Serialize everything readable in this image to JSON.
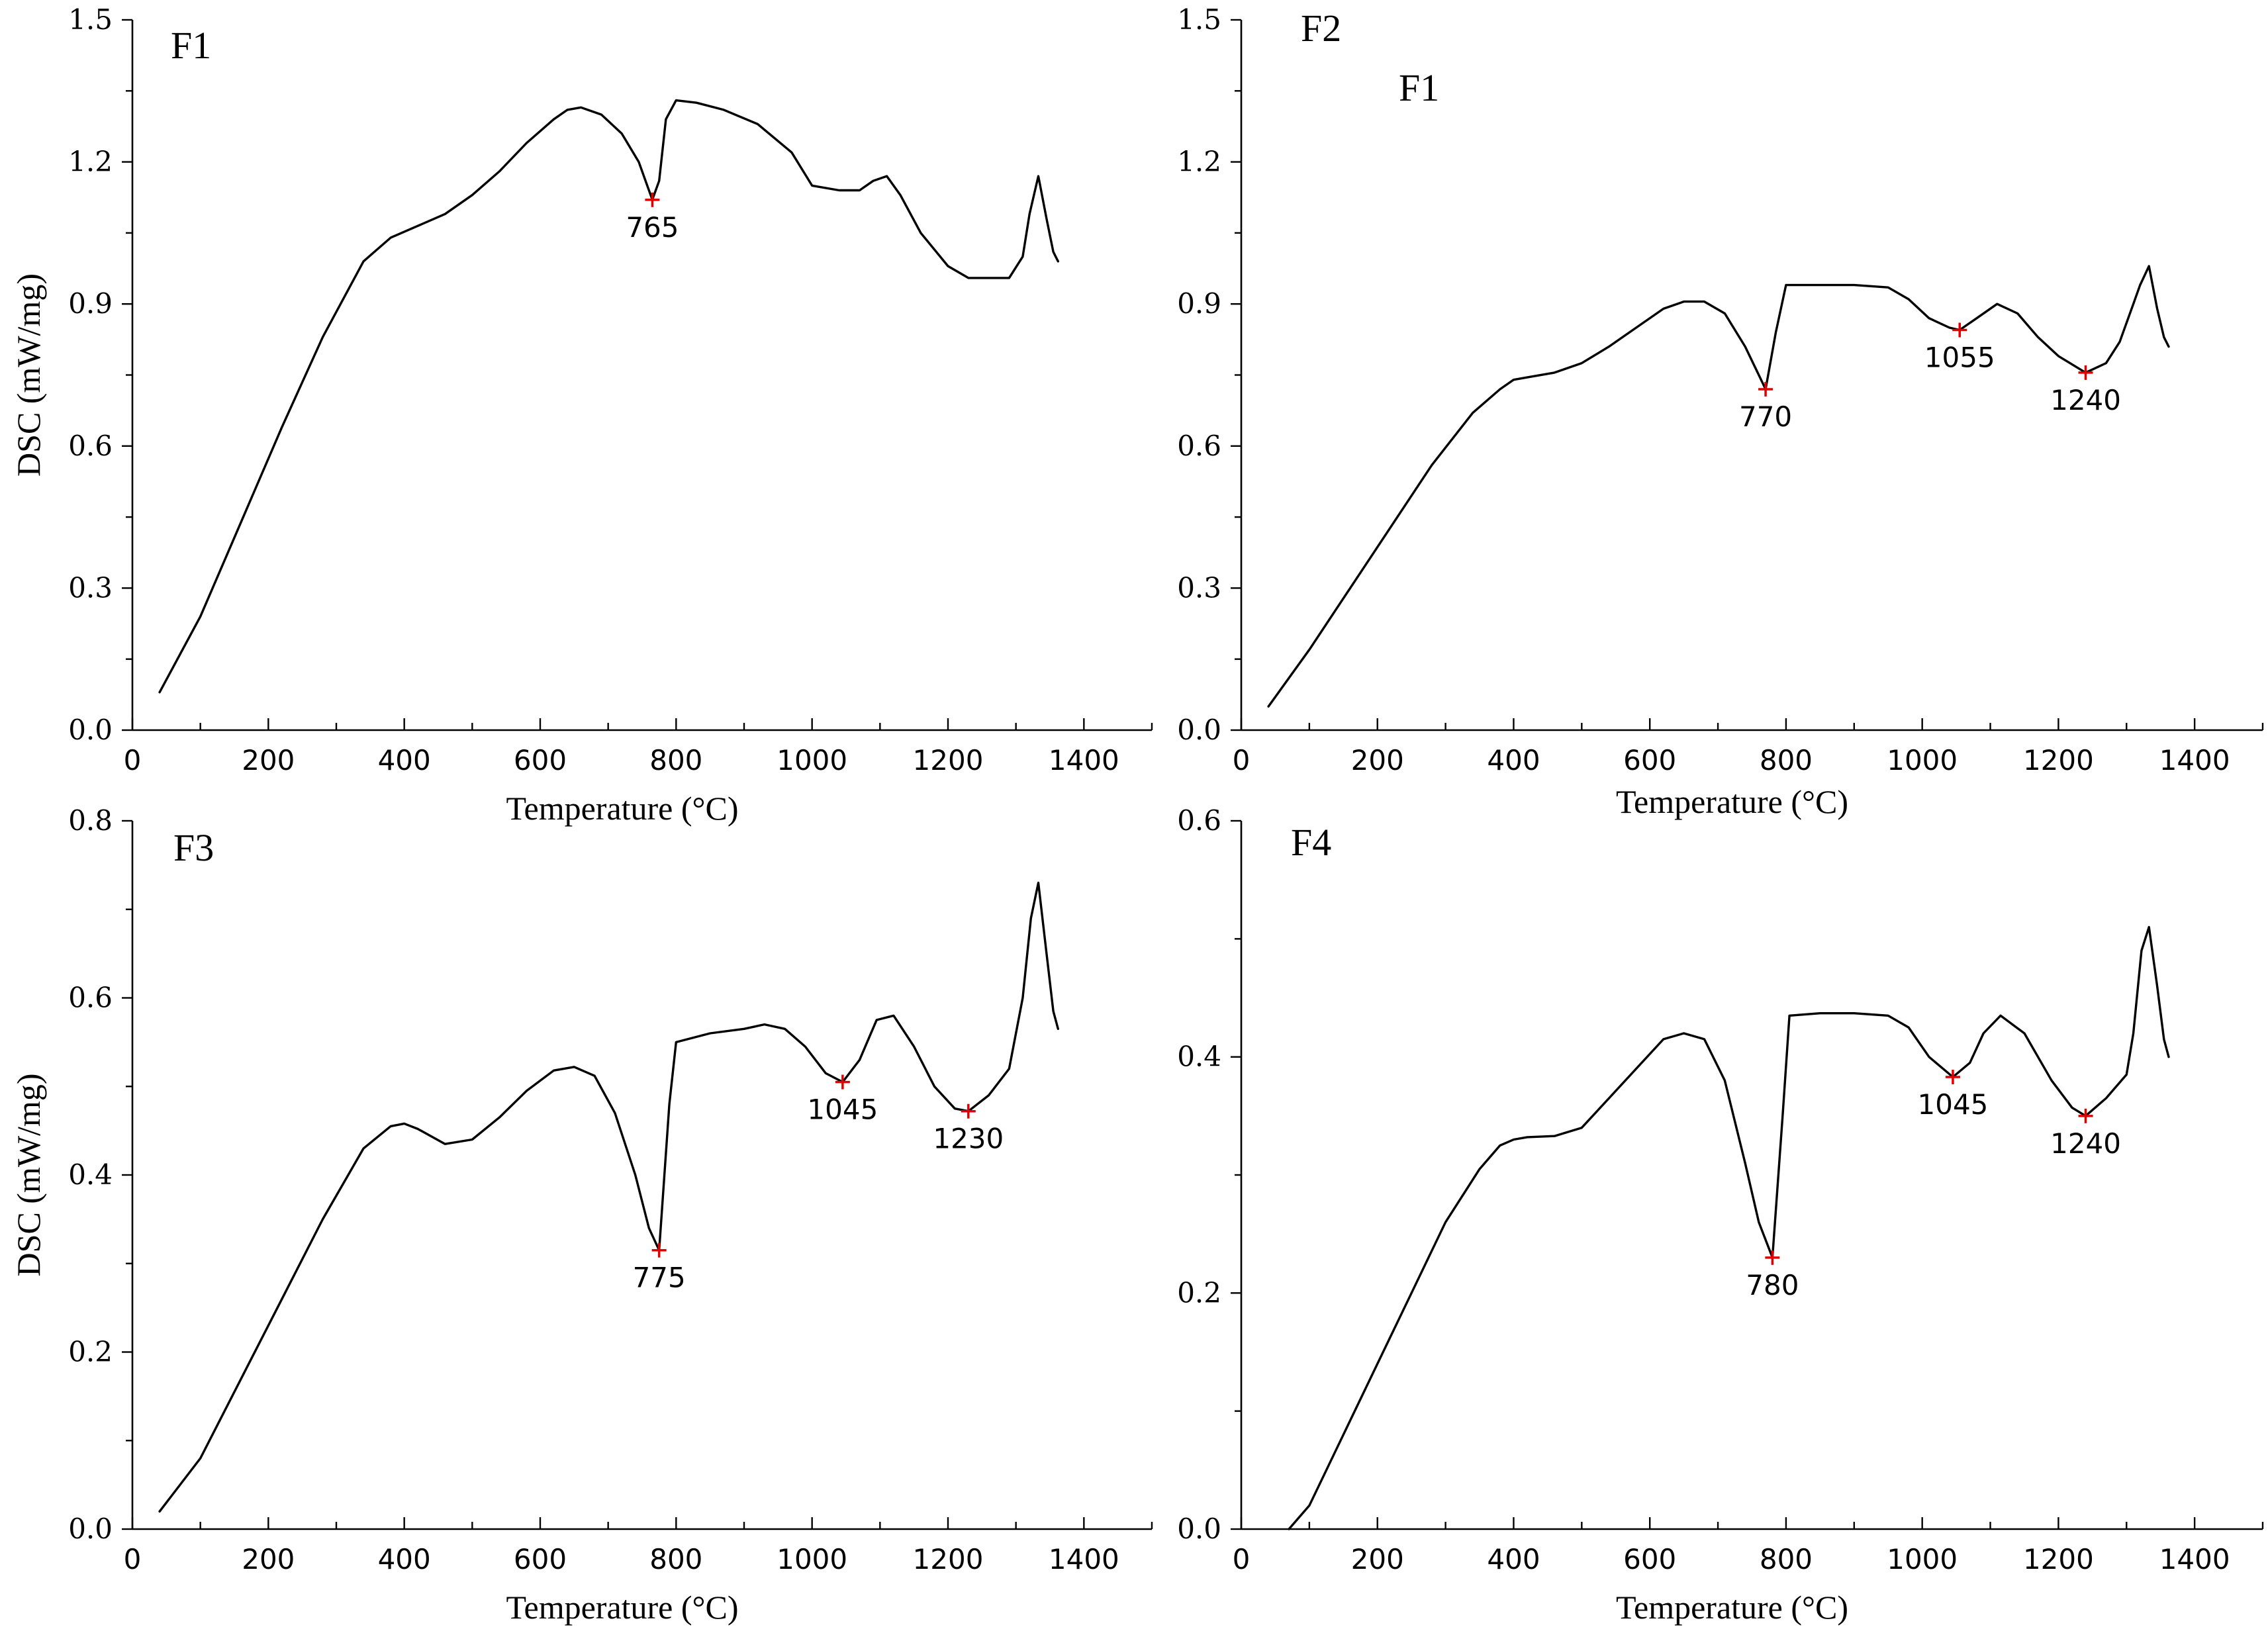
{
  "chart_data": [
    {
      "type": "line",
      "panel": "top-left",
      "label": "F1",
      "extra_label": "",
      "xlabel": "Temperature (°C)",
      "ylabel": "DSC (mW/mg)",
      "xlim": [
        0,
        1500
      ],
      "ylim": [
        0,
        1.5
      ],
      "xticks": [
        0,
        200,
        400,
        600,
        800,
        1000,
        1200,
        1400
      ],
      "xtick_labels": [
        "0",
        "200",
        "400",
        "600",
        "800",
        "1000",
        "1200",
        "1400"
      ],
      "yticks": [
        0,
        0.3,
        0.6,
        0.9,
        1.2,
        1.5
      ],
      "ytick_labels": [
        "0.0",
        "0.3",
        "0.6",
        "0.9",
        "1.2",
        "1.5"
      ],
      "x": [
        40,
        100,
        160,
        220,
        280,
        340,
        380,
        420,
        460,
        500,
        540,
        580,
        620,
        640,
        660,
        690,
        720,
        745,
        765,
        775,
        785,
        800,
        830,
        870,
        920,
        970,
        1000,
        1040,
        1070,
        1090,
        1110,
        1130,
        1160,
        1200,
        1230,
        1260,
        1290,
        1310,
        1320,
        1333,
        1345,
        1355,
        1362
      ],
      "y": [
        0.08,
        0.24,
        0.44,
        0.64,
        0.83,
        0.99,
        1.04,
        1.065,
        1.09,
        1.13,
        1.18,
        1.24,
        1.29,
        1.31,
        1.315,
        1.3,
        1.26,
        1.2,
        1.12,
        1.16,
        1.29,
        1.33,
        1.325,
        1.31,
        1.28,
        1.22,
        1.15,
        1.14,
        1.14,
        1.16,
        1.17,
        1.13,
        1.05,
        0.98,
        0.955,
        0.955,
        0.955,
        1.0,
        1.09,
        1.17,
        1.08,
        1.01,
        0.99
      ],
      "peaks": [
        {
          "x": 765,
          "y": 1.12,
          "label": "765"
        }
      ]
    },
    {
      "type": "line",
      "panel": "top-right",
      "label": "F2",
      "extra_label": "F1",
      "xlabel": "Temperature (°C)",
      "ylabel": "",
      "xlim": [
        0,
        1500
      ],
      "ylim": [
        0,
        1.5
      ],
      "xticks": [
        0,
        200,
        400,
        600,
        800,
        1000,
        1200,
        1400
      ],
      "xtick_labels": [
        "0",
        "200",
        "400",
        "600",
        "800",
        "1000",
        "1200",
        "1400"
      ],
      "yticks": [
        0,
        0.3,
        0.6,
        0.9,
        1.2,
        1.5
      ],
      "ytick_labels": [
        "0.0",
        "0.3",
        "0.6",
        "0.9",
        "1.2",
        "1.5"
      ],
      "x": [
        40,
        100,
        160,
        220,
        280,
        340,
        380,
        400,
        420,
        460,
        500,
        540,
        580,
        620,
        650,
        680,
        710,
        740,
        760,
        770,
        785,
        800,
        850,
        900,
        950,
        980,
        1010,
        1040,
        1055,
        1080,
        1110,
        1140,
        1170,
        1200,
        1240,
        1270,
        1290,
        1310,
        1320,
        1333,
        1345,
        1355,
        1362
      ],
      "y": [
        0.05,
        0.17,
        0.3,
        0.43,
        0.56,
        0.67,
        0.72,
        0.74,
        0.745,
        0.755,
        0.775,
        0.81,
        0.85,
        0.89,
        0.905,
        0.905,
        0.88,
        0.81,
        0.75,
        0.72,
        0.84,
        0.94,
        0.94,
        0.94,
        0.935,
        0.91,
        0.87,
        0.85,
        0.845,
        0.87,
        0.9,
        0.88,
        0.83,
        0.79,
        0.755,
        0.775,
        0.82,
        0.9,
        0.94,
        0.98,
        0.89,
        0.83,
        0.81
      ],
      "peaks": [
        {
          "x": 770,
          "y": 0.72,
          "label": "770"
        },
        {
          "x": 1055,
          "y": 0.845,
          "label": "1055"
        },
        {
          "x": 1240,
          "y": 0.755,
          "label": "1240"
        }
      ]
    },
    {
      "type": "line",
      "panel": "bottom-left",
      "label": "F3",
      "extra_label": "",
      "xlabel": "Temperature (°C)",
      "ylabel": "DSC (mW/mg)",
      "xlim": [
        0,
        1500
      ],
      "ylim": [
        0,
        0.8
      ],
      "xticks": [
        0,
        200,
        400,
        600,
        800,
        1000,
        1200,
        1400
      ],
      "xtick_labels": [
        "0",
        "200",
        "400",
        "600",
        "800",
        "1000",
        "1200",
        "1400"
      ],
      "yticks": [
        0,
        0.2,
        0.4,
        0.6,
        0.8
      ],
      "ytick_labels": [
        "0.0",
        "0.2",
        "0.4",
        "0.6",
        "0.8"
      ],
      "x": [
        40,
        100,
        160,
        220,
        280,
        340,
        380,
        400,
        420,
        460,
        500,
        540,
        580,
        620,
        650,
        680,
        710,
        740,
        760,
        775,
        790,
        800,
        850,
        900,
        930,
        960,
        990,
        1020,
        1045,
        1070,
        1095,
        1120,
        1150,
        1180,
        1210,
        1230,
        1260,
        1290,
        1310,
        1322,
        1333,
        1345,
        1355,
        1362
      ],
      "y": [
        0.02,
        0.08,
        0.17,
        0.26,
        0.35,
        0.43,
        0.455,
        0.458,
        0.452,
        0.435,
        0.44,
        0.465,
        0.495,
        0.518,
        0.522,
        0.512,
        0.47,
        0.4,
        0.34,
        0.315,
        0.48,
        0.55,
        0.56,
        0.565,
        0.57,
        0.565,
        0.545,
        0.515,
        0.505,
        0.53,
        0.575,
        0.58,
        0.545,
        0.5,
        0.475,
        0.472,
        0.49,
        0.52,
        0.6,
        0.69,
        0.73,
        0.65,
        0.585,
        0.565
      ],
      "peaks": [
        {
          "x": 775,
          "y": 0.315,
          "label": "775"
        },
        {
          "x": 1045,
          "y": 0.505,
          "label": "1045"
        },
        {
          "x": 1230,
          "y": 0.472,
          "label": "1230"
        }
      ]
    },
    {
      "type": "line",
      "panel": "bottom-right",
      "label": "F4",
      "extra_label": "",
      "xlabel": "Temperature (°C)",
      "ylabel": "",
      "xlim": [
        0,
        1500
      ],
      "ylim": [
        0,
        0.6
      ],
      "xticks": [
        0,
        200,
        400,
        600,
        800,
        1000,
        1200,
        1400
      ],
      "xtick_labels": [
        "0",
        "200",
        "400",
        "600",
        "800",
        "1000",
        "1200",
        "1400"
      ],
      "yticks": [
        0,
        0.2,
        0.4,
        0.6
      ],
      "ytick_labels": [
        "0.0",
        "0.2",
        "0.4",
        "0.6"
      ],
      "x": [
        70,
        100,
        150,
        200,
        250,
        300,
        350,
        380,
        400,
        420,
        460,
        500,
        540,
        580,
        620,
        650,
        680,
        710,
        740,
        760,
        780,
        795,
        805,
        850,
        900,
        950,
        980,
        1010,
        1045,
        1070,
        1090,
        1115,
        1150,
        1190,
        1220,
        1240,
        1270,
        1300,
        1310,
        1322,
        1333,
        1345,
        1355,
        1362
      ],
      "y": [
        0.0,
        0.02,
        0.08,
        0.14,
        0.2,
        0.26,
        0.305,
        0.325,
        0.33,
        0.332,
        0.333,
        0.34,
        0.365,
        0.39,
        0.415,
        0.42,
        0.415,
        0.38,
        0.31,
        0.26,
        0.23,
        0.35,
        0.435,
        0.437,
        0.437,
        0.435,
        0.425,
        0.4,
        0.383,
        0.395,
        0.42,
        0.435,
        0.42,
        0.38,
        0.357,
        0.35,
        0.365,
        0.385,
        0.42,
        0.49,
        0.51,
        0.46,
        0.415,
        0.4
      ],
      "peaks": [
        {
          "x": 780,
          "y": 0.23,
          "label": "780"
        },
        {
          "x": 1045,
          "y": 0.383,
          "label": "1045"
        },
        {
          "x": 1240,
          "y": 0.35,
          "label": "1240"
        }
      ]
    }
  ]
}
